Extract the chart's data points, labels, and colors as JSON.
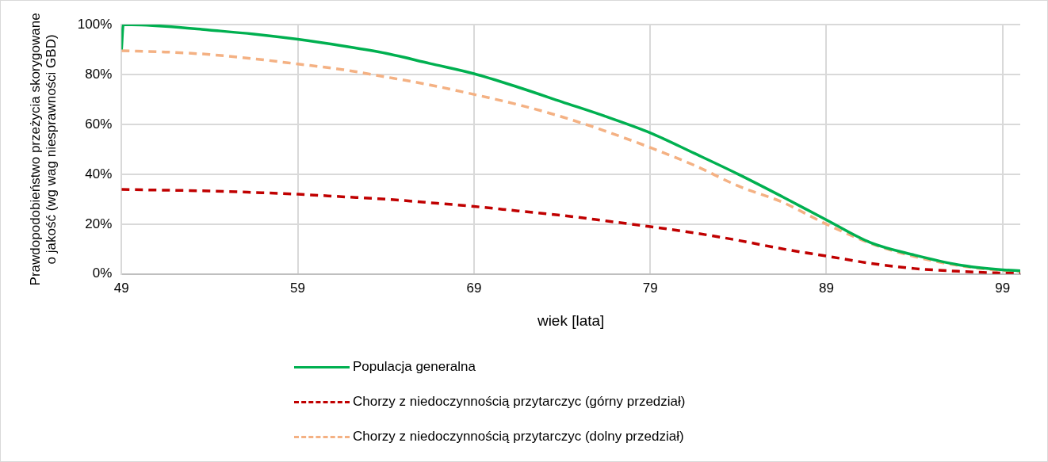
{
  "chart_data": {
    "type": "line",
    "xlabel": "wiek [lata]",
    "ylabel": "Prawdopodobieństwo przeżycia skorygowane\no jakość (wg wag niesprawności GBD)",
    "xlim": [
      49,
      100
    ],
    "xticks": [
      49,
      59,
      69,
      79,
      89,
      99
    ],
    "ylim": [
      0,
      100
    ],
    "yticks": [
      {
        "value": 0,
        "label": "0%"
      },
      {
        "value": 20,
        "label": "20%"
      },
      {
        "value": 40,
        "label": "40%"
      },
      {
        "value": 60,
        "label": "60%"
      },
      {
        "value": 80,
        "label": "80%"
      },
      {
        "value": 100,
        "label": "100%"
      }
    ],
    "grid": true,
    "legend": "bottom",
    "marker": "none",
    "series": [
      {
        "name": "Populacja generalna",
        "color": "#00b050",
        "line_style": "solid",
        "x": [
          49,
          49.1,
          51.5,
          54,
          56.5,
          59,
          61.5,
          64,
          66.5,
          69,
          71.5,
          74,
          76.5,
          79,
          81.5,
          84,
          86.5,
          89,
          91.5,
          94,
          96.5,
          99,
          100
        ],
        "values": [
          90,
          100,
          99.3,
          97.8,
          96.2,
          94.1,
          91.5,
          88.5,
          84.4,
          80.3,
          74.9,
          69,
          63.1,
          56.6,
          48.4,
          40,
          31,
          21.7,
          12.6,
          7.6,
          3.7,
          1.7,
          1.3
        ]
      },
      {
        "name": "Chorzy z niedoczynnością przytarczyc (górny przedział)",
        "color": "#c00000",
        "line_style": "dashed",
        "x": [
          49,
          51.5,
          54,
          56.5,
          59,
          61.5,
          64,
          66.5,
          69,
          71.5,
          74,
          76.5,
          79,
          81.5,
          84,
          86.5,
          89,
          91.5,
          94,
          96.5,
          99,
          100
        ],
        "values": [
          33.9,
          33.6,
          33.3,
          32.7,
          32,
          31,
          30,
          28.6,
          27.1,
          25.3,
          23.5,
          21.3,
          19,
          16.5,
          13.5,
          10.1,
          7.2,
          4.3,
          2.2,
          1.1,
          0.4,
          0.3
        ]
      },
      {
        "name": "Chorzy z niedoczynnością przytarczyc (dolny przedział)",
        "color": "#f4b183",
        "line_style": "dashed",
        "x": [
          49,
          51.5,
          54,
          56.5,
          59,
          61.5,
          64,
          66.5,
          69,
          71.5,
          74,
          76.5,
          79,
          81.5,
          84,
          86.5,
          89,
          91.5,
          94,
          96.5,
          99,
          100
        ],
        "values": [
          89.5,
          89,
          88,
          86.3,
          84.2,
          82,
          79,
          75.8,
          72,
          67.9,
          63,
          57.2,
          50.7,
          43.6,
          35.3,
          28.8,
          20,
          12.3,
          7,
          3.4,
          1.4,
          1.2
        ]
      }
    ]
  }
}
